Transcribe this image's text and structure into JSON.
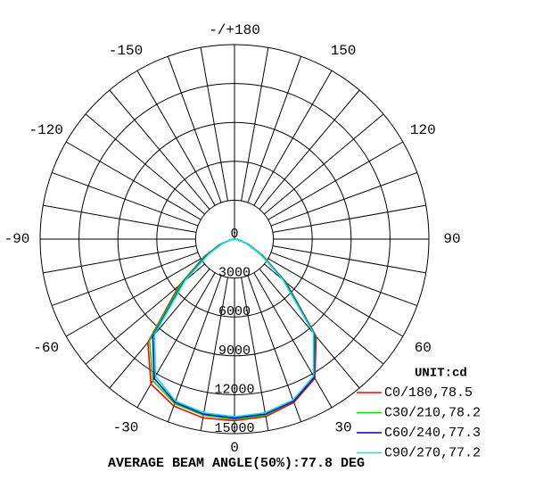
{
  "chart_data": {
    "type": "polar",
    "angle_ticks": [
      -150,
      -120,
      -90,
      -60,
      -30,
      0,
      30,
      60,
      90,
      120,
      150,
      {
        "value": 180,
        "label": "-/+180"
      }
    ],
    "rlim": [
      0,
      15000
    ],
    "rticks": [
      0,
      3000,
      6000,
      9000,
      12000,
      15000
    ],
    "angles": [
      -90,
      -80,
      -70,
      -60,
      -50,
      -40,
      -30,
      -20,
      -10,
      0,
      10,
      20,
      30,
      40,
      50,
      60,
      70,
      80,
      90
    ],
    "unit_label": "UNIT:cd",
    "series": [
      {
        "name": "C0/180,78.5",
        "color": "#ff0000",
        "values": [
          0,
          300,
          1200,
          2700,
          5600,
          10400,
          12900,
          13700,
          14000,
          14000,
          13900,
          13400,
          12400,
          9800,
          5200,
          2500,
          1100,
          300,
          0
        ]
      },
      {
        "name": "C30/210,78.2",
        "color": "#00dd00",
        "values": [
          0,
          300,
          1100,
          2600,
          5400,
          10200,
          12600,
          13500,
          13800,
          13900,
          13800,
          13300,
          12300,
          9700,
          5100,
          2400,
          1000,
          300,
          0
        ]
      },
      {
        "name": "C60/240,77.3",
        "color": "#0000cc",
        "values": [
          0,
          300,
          1000,
          2400,
          5100,
          9800,
          12400,
          13400,
          13700,
          13800,
          13700,
          13300,
          12300,
          9600,
          5000,
          2300,
          1000,
          300,
          0
        ]
      },
      {
        "name": "C90/270,77.2",
        "color": "#00e5e5",
        "values": [
          0,
          300,
          1000,
          2300,
          5000,
          9600,
          12200,
          13300,
          13600,
          13700,
          13600,
          13200,
          12200,
          9500,
          4900,
          2300,
          1000,
          300,
          0
        ]
      }
    ],
    "footer": "AVERAGE BEAM ANGLE(50%):77.8 DEG"
  }
}
